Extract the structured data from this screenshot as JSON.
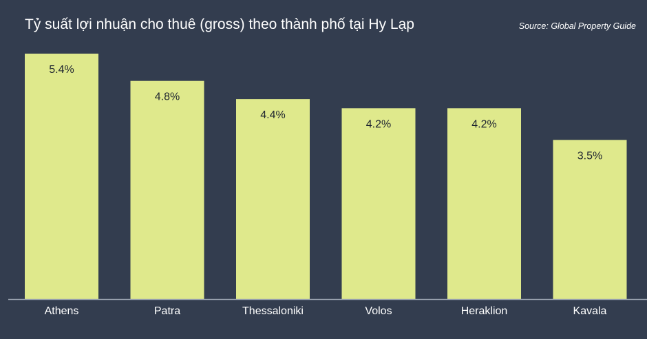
{
  "title": "Tỷ suất lợi nhuận cho thuê (gross) theo thành phố tại Hy Lạp",
  "source": "Source: Global Property Guide",
  "colors": {
    "background": "#333d4f",
    "bar": "#dfe98c",
    "axis": "#9aa3b0",
    "text": "#ffffff"
  },
  "chart_data": {
    "type": "bar",
    "title": "Tỷ suất lợi nhuận cho thuê (gross) theo thành phố tại Hy Lạp",
    "categories": [
      "Athens",
      "Patra",
      "Thessaloniki",
      "Volos",
      "Heraklion",
      "Kavala"
    ],
    "values": [
      5.4,
      4.8,
      4.4,
      4.2,
      4.2,
      3.5
    ],
    "labels": [
      "5.4%",
      "4.8%",
      "4.4%",
      "4.2%",
      "4.2%",
      "3.5%"
    ],
    "unit": "%",
    "xlabel": "",
    "ylabel": "",
    "ylim": [
      0,
      5.4
    ],
    "grid": false,
    "legend": "none"
  }
}
